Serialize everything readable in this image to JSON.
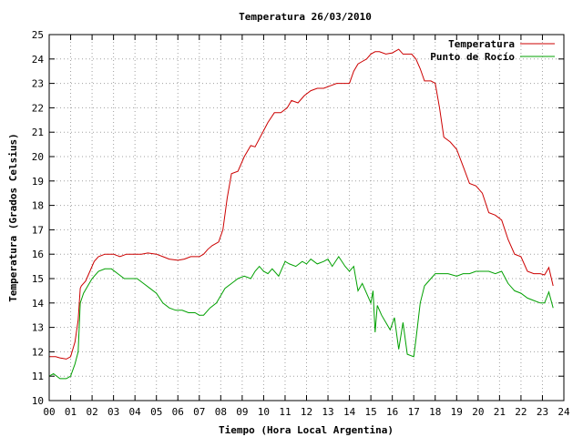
{
  "chart_data": {
    "type": "line",
    "title": "Temperatura 26/03/2010",
    "xlabel": "Tiempo (Hora Local Argentina)",
    "ylabel": "Temperatura (Grados Celsius)",
    "xlim": [
      0,
      24
    ],
    "ylim": [
      10,
      25
    ],
    "x_ticks": [
      "00",
      "01",
      "02",
      "03",
      "04",
      "05",
      "06",
      "07",
      "08",
      "09",
      "10",
      "11",
      "12",
      "13",
      "14",
      "15",
      "16",
      "17",
      "18",
      "19",
      "20",
      "21",
      "22",
      "23",
      "24"
    ],
    "y_ticks": [
      "10",
      "11",
      "12",
      "13",
      "14",
      "15",
      "16",
      "17",
      "18",
      "19",
      "20",
      "21",
      "22",
      "23",
      "24",
      "25"
    ],
    "grid": true,
    "legend_position": "top-right",
    "series": [
      {
        "name": "Temperatura",
        "color": "#cc0000",
        "x": [
          0,
          0.3,
          0.5,
          0.8,
          1.0,
          1.2,
          1.35,
          1.45,
          1.5,
          1.7,
          1.9,
          2.1,
          2.3,
          2.6,
          3.0,
          3.3,
          3.6,
          4.0,
          4.3,
          4.6,
          5.0,
          5.3,
          5.6,
          6.0,
          6.3,
          6.6,
          7.0,
          7.2,
          7.4,
          7.6,
          7.9,
          8.1,
          8.3,
          8.5,
          8.8,
          9.1,
          9.4,
          9.6,
          9.9,
          10.2,
          10.5,
          10.8,
          11.1,
          11.3,
          11.6,
          11.9,
          12.2,
          12.5,
          12.8,
          13.1,
          13.4,
          13.7,
          14.0,
          14.2,
          14.4,
          14.6,
          14.8,
          15.0,
          15.2,
          15.4,
          15.7,
          16.0,
          16.3,
          16.5,
          16.7,
          16.9,
          17.1,
          17.3,
          17.5,
          17.8,
          18.0,
          18.2,
          18.4,
          18.7,
          19.0,
          19.3,
          19.6,
          19.9,
          20.2,
          20.5,
          20.8,
          21.1,
          21.4,
          21.7,
          22.0,
          22.3,
          22.6,
          22.9,
          23.1,
          23.3,
          23.5
        ],
        "values": [
          11.8,
          11.8,
          11.75,
          11.7,
          11.8,
          12.4,
          13.3,
          14.6,
          14.7,
          14.9,
          15.3,
          15.7,
          15.9,
          16.0,
          16.0,
          15.9,
          16.0,
          16.0,
          16.0,
          16.05,
          16.0,
          15.9,
          15.8,
          15.75,
          15.8,
          15.9,
          15.9,
          16.0,
          16.2,
          16.35,
          16.5,
          17.0,
          18.3,
          19.3,
          19.4,
          20.0,
          20.45,
          20.4,
          20.9,
          21.4,
          21.8,
          21.8,
          22.0,
          22.3,
          22.2,
          22.5,
          22.7,
          22.8,
          22.8,
          22.9,
          23.0,
          23.0,
          23.0,
          23.5,
          23.8,
          23.9,
          24.0,
          24.2,
          24.3,
          24.3,
          24.2,
          24.25,
          24.4,
          24.2,
          24.2,
          24.2,
          24.0,
          23.6,
          23.1,
          23.1,
          23.0,
          22.0,
          20.8,
          20.6,
          20.3,
          19.6,
          18.9,
          18.8,
          18.5,
          17.7,
          17.6,
          17.4,
          16.6,
          16.0,
          15.9,
          15.3,
          15.2,
          15.2,
          15.15,
          15.45,
          14.7
        ]
      },
      {
        "name": "Punto de Rocío",
        "color": "#00a000",
        "x": [
          0,
          0.2,
          0.5,
          0.8,
          1.0,
          1.2,
          1.35,
          1.45,
          1.6,
          1.8,
          2.0,
          2.3,
          2.6,
          2.9,
          3.2,
          3.5,
          3.8,
          4.1,
          4.4,
          4.7,
          5.0,
          5.3,
          5.6,
          5.9,
          6.2,
          6.5,
          6.8,
          7.0,
          7.2,
          7.5,
          7.8,
          8.0,
          8.2,
          8.5,
          8.8,
          9.1,
          9.4,
          9.6,
          9.8,
          10.0,
          10.2,
          10.4,
          10.7,
          11.0,
          11.2,
          11.5,
          11.8,
          12.0,
          12.2,
          12.5,
          12.8,
          13.0,
          13.2,
          13.5,
          13.8,
          14.0,
          14.2,
          14.4,
          14.6,
          14.8,
          15.0,
          15.1,
          15.2,
          15.3,
          15.5,
          15.7,
          15.9,
          16.1,
          16.3,
          16.5,
          16.7,
          17.0,
          17.1,
          17.3,
          17.5,
          17.8,
          18.0,
          18.3,
          18.6,
          19.0,
          19.3,
          19.6,
          19.9,
          20.2,
          20.5,
          20.8,
          21.1,
          21.4,
          21.7,
          22.0,
          22.3,
          22.6,
          22.9,
          23.1,
          23.3,
          23.5
        ],
        "values": [
          11.0,
          11.1,
          10.9,
          10.9,
          11.0,
          11.5,
          12.0,
          14.0,
          14.4,
          14.7,
          15.0,
          15.3,
          15.4,
          15.4,
          15.2,
          15.0,
          15.0,
          15.0,
          14.8,
          14.6,
          14.4,
          14.0,
          13.8,
          13.7,
          13.7,
          13.6,
          13.6,
          13.5,
          13.5,
          13.8,
          14.0,
          14.3,
          14.6,
          14.8,
          15.0,
          15.1,
          15.0,
          15.3,
          15.5,
          15.3,
          15.2,
          15.4,
          15.1,
          15.7,
          15.6,
          15.5,
          15.7,
          15.6,
          15.8,
          15.6,
          15.7,
          15.8,
          15.5,
          15.9,
          15.5,
          15.3,
          15.5,
          14.5,
          14.8,
          14.4,
          14.0,
          14.5,
          12.8,
          13.9,
          13.5,
          13.2,
          12.9,
          13.4,
          12.1,
          13.2,
          11.9,
          11.8,
          12.5,
          14.0,
          14.7,
          15.0,
          15.2,
          15.2,
          15.2,
          15.1,
          15.2,
          15.2,
          15.3,
          15.3,
          15.3,
          15.2,
          15.3,
          14.8,
          14.5,
          14.4,
          14.2,
          14.1,
          14.0,
          14.0,
          14.45,
          13.8
        ]
      }
    ]
  }
}
